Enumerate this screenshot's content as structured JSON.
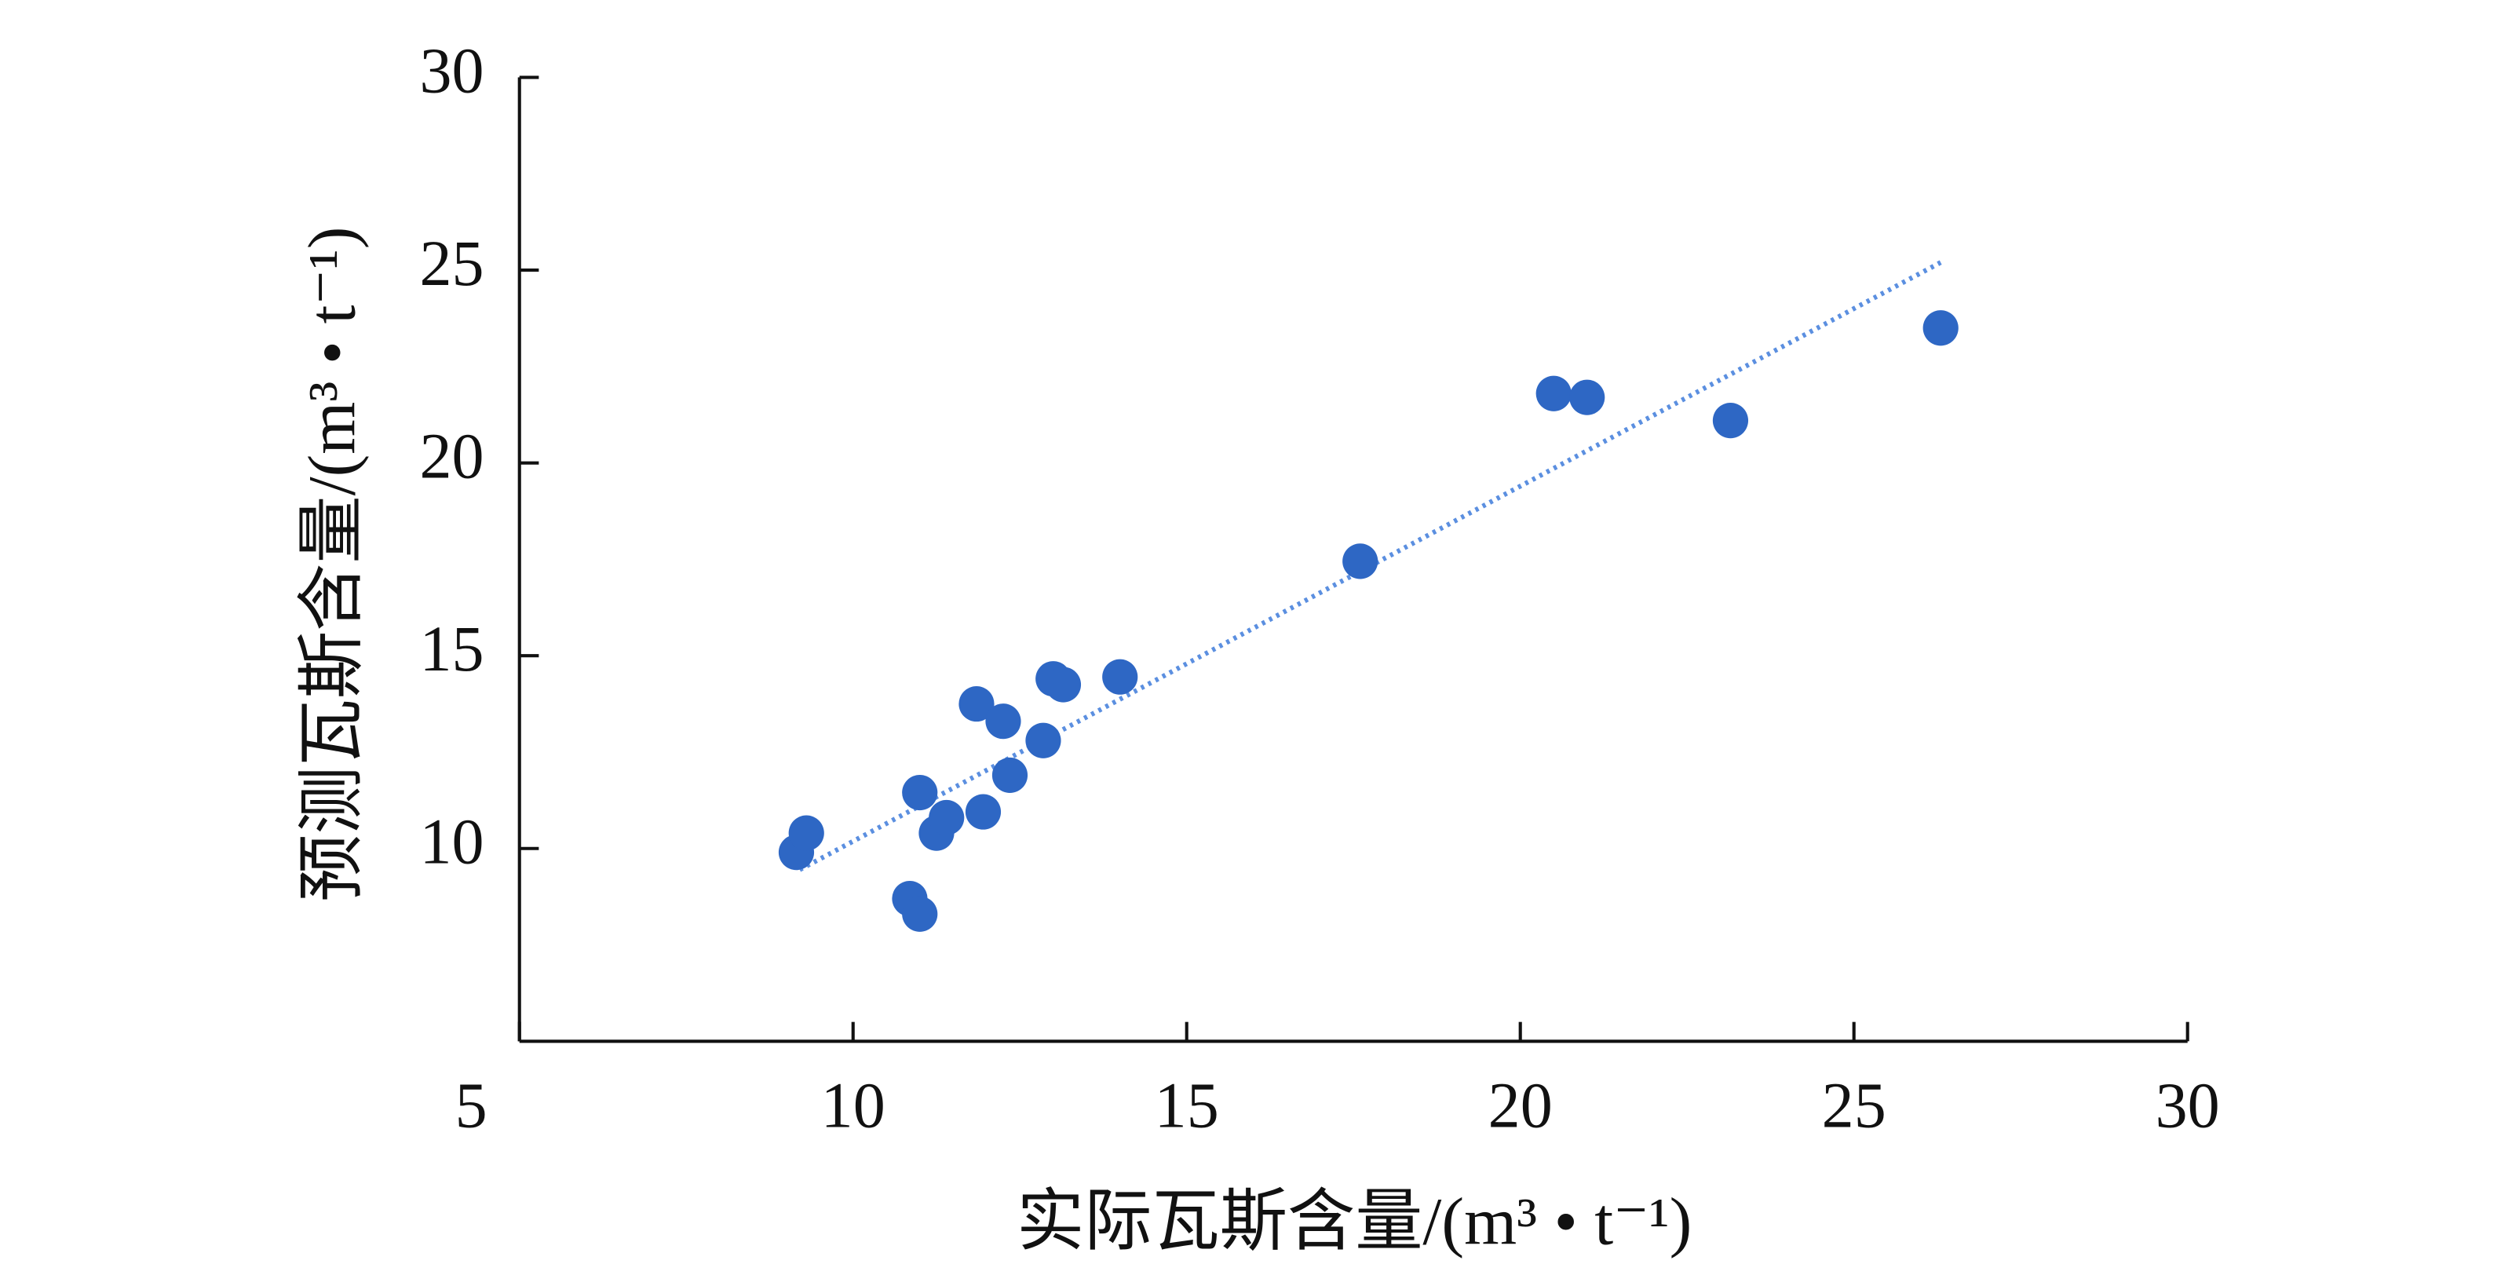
{
  "chart_data": {
    "type": "scatter",
    "x_label": "实际瓦斯含量/(m³ • t⁻¹)",
    "y_label": "预测瓦斯含量/(m³ • t⁻¹)",
    "xlim": [
      5,
      30
    ],
    "xticks": [
      5,
      10,
      15,
      20,
      25,
      30
    ],
    "ylim": [
      5,
      30
    ],
    "yticks": [
      10,
      15,
      20,
      25,
      30
    ],
    "series": [
      {
        "color": "#2e67c4",
        "x": [
          9.15,
          9.3,
          10.85,
          11.0,
          11.0,
          11.25,
          11.4,
          11.95,
          11.85,
          12.25,
          12.35,
          12.85,
          13.0,
          13.15,
          14.0,
          17.6,
          20.5,
          21.0,
          23.15,
          26.3
        ],
        "values": [
          9.9,
          10.4,
          8.7,
          8.3,
          11.45,
          10.4,
          10.8,
          10.95,
          13.75,
          13.3,
          11.9,
          12.8,
          14.4,
          14.25,
          14.45,
          17.45,
          21.8,
          21.7,
          21.1,
          23.5
        ]
      }
    ],
    "trendline": {
      "color": "#5b8fe0",
      "x": [
        9.2,
        26.3
      ],
      "values": [
        9.45,
        25.2
      ]
    }
  }
}
